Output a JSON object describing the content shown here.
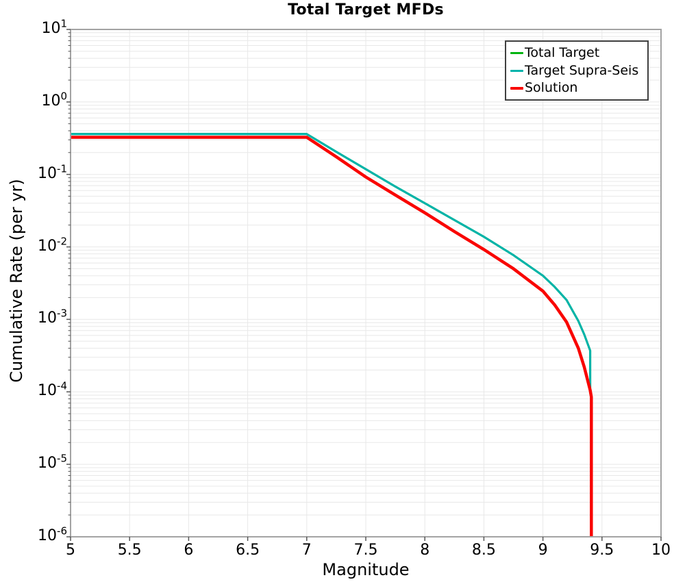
{
  "chart_data": {
    "type": "line",
    "title": "Total Target MFDs",
    "xlabel": "Magnitude",
    "ylabel": "Cumulative Rate (per yr)",
    "x_axis": {
      "scale": "linear",
      "min": 5,
      "max": 10,
      "ticks": [
        5,
        5.5,
        6,
        6.5,
        7,
        7.5,
        8,
        8.5,
        9,
        9.5,
        10
      ]
    },
    "y_axis": {
      "scale": "log",
      "min_exp": -6,
      "max_exp": 1,
      "tick_exponents": [
        1,
        0,
        -1,
        -2,
        -3,
        -4,
        -5,
        -6
      ]
    },
    "grid": {
      "show": true,
      "color": "#e8e8e8"
    },
    "frame_color": "#a3a3a3",
    "tick_color": "#555555",
    "legend": {
      "position": "top-right",
      "border_color": "#3f3f3f",
      "background": "#ffffff"
    },
    "series": [
      {
        "name": "Total Target",
        "color": "#00b410",
        "width": 3,
        "points": [
          [
            5.0,
            0.36
          ],
          [
            7.0,
            0.36
          ],
          [
            7.25,
            0.205
          ],
          [
            7.5,
            0.118
          ],
          [
            7.75,
            0.068
          ],
          [
            8.0,
            0.04
          ],
          [
            8.25,
            0.0235
          ],
          [
            8.5,
            0.0138
          ],
          [
            8.75,
            0.0077
          ],
          [
            9.0,
            0.004
          ],
          [
            9.1,
            0.0028
          ],
          [
            9.2,
            0.00185
          ],
          [
            9.3,
            0.00095
          ],
          [
            9.35,
            0.00062
          ],
          [
            9.4,
            0.00037
          ],
          [
            9.4,
            9.5e-05
          ]
        ]
      },
      {
        "name": "Target Supra-Seis",
        "color": "#00b3ab",
        "width": 3,
        "points": [
          [
            5.0,
            0.36
          ],
          [
            7.0,
            0.36
          ],
          [
            7.25,
            0.205
          ],
          [
            7.5,
            0.118
          ],
          [
            7.75,
            0.068
          ],
          [
            8.0,
            0.04
          ],
          [
            8.25,
            0.0235
          ],
          [
            8.5,
            0.0138
          ],
          [
            8.75,
            0.0077
          ],
          [
            9.0,
            0.004
          ],
          [
            9.1,
            0.0028
          ],
          [
            9.2,
            0.00185
          ],
          [
            9.3,
            0.00095
          ],
          [
            9.35,
            0.00062
          ],
          [
            9.4,
            0.00037
          ],
          [
            9.4,
            9.5e-05
          ]
        ]
      },
      {
        "name": "Solution",
        "color": "#f90400",
        "width": 4.5,
        "points": [
          [
            5.0,
            0.325
          ],
          [
            7.0,
            0.325
          ],
          [
            7.25,
            0.175
          ],
          [
            7.5,
            0.092
          ],
          [
            7.75,
            0.052
          ],
          [
            8.0,
            0.0295
          ],
          [
            8.25,
            0.0163
          ],
          [
            8.5,
            0.0092
          ],
          [
            8.75,
            0.005
          ],
          [
            9.0,
            0.00245
          ],
          [
            9.1,
            0.00158
          ],
          [
            9.2,
            0.00092
          ],
          [
            9.3,
            0.0004
          ],
          [
            9.35,
            0.00022
          ],
          [
            9.4,
            0.000105
          ],
          [
            9.41,
            8.5e-05
          ],
          [
            9.41,
            8e-07
          ]
        ]
      }
    ]
  }
}
